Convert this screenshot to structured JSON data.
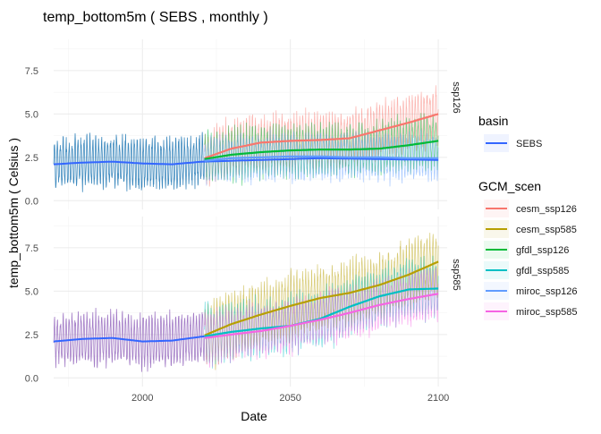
{
  "chart_data": {
    "type": "line",
    "title": "temp_bottom5m ( SEBS , monthly )",
    "xlabel": "Date",
    "ylabel": "temp_bottom5m ( Celsius )",
    "xlim": [
      1970,
      2103
    ],
    "ylim": [
      -0.5,
      9.3
    ],
    "x_ticks": [
      "2000",
      "2050",
      "2100"
    ],
    "x_tick_values": [
      2000,
      2050,
      2100
    ],
    "y_ticks": [
      "0.0",
      "2.5",
      "5.0",
      "7.5"
    ],
    "y_tick_values": [
      0,
      2.5,
      5,
      7.5
    ],
    "grid": true,
    "legend_position": "right",
    "legends": [
      {
        "title": "basin",
        "entries": [
          {
            "label": "SEBS",
            "color": "#3366ff"
          }
        ]
      },
      {
        "title": "GCM_scen",
        "entries": [
          {
            "label": "cesm_ssp126",
            "color": "#F8766D"
          },
          {
            "label": "cesm_ssp585",
            "color": "#B79F00"
          },
          {
            "label": "gfdl_ssp126",
            "color": "#00BA38"
          },
          {
            "label": "gfdl_ssp585",
            "color": "#00BFC4"
          },
          {
            "label": "miroc_ssp126",
            "color": "#619CFF"
          },
          {
            "label": "miroc_ssp585",
            "color": "#F564E3"
          }
        ]
      }
    ],
    "panels": [
      {
        "label": "ssp126",
        "historical": {
          "color": "#1f77b4",
          "x_range": [
            1970,
            2021
          ],
          "mean": [
            [
              1970,
              2.1
            ],
            [
              1980,
              2.25
            ],
            [
              1990,
              2.3
            ],
            [
              2000,
              2.1
            ],
            [
              2010,
              2.15
            ],
            [
              2021,
              2.4
            ]
          ],
          "amplitude": 1.6
        },
        "series": [
          {
            "name": "cesm_ssp126",
            "color": "#F8766D",
            "x": [
              2021,
              2030,
              2040,
              2050,
              2060,
              2070,
              2080,
              2090,
              2100
            ],
            "smooth": [
              2.45,
              3.0,
              3.35,
              3.45,
              3.5,
              3.6,
              4.05,
              4.5,
              5.0
            ],
            "amplitude": 1.7
          },
          {
            "name": "gfdl_ssp126",
            "color": "#00BA38",
            "x": [
              2021,
              2030,
              2040,
              2050,
              2060,
              2070,
              2080,
              2090,
              2100
            ],
            "smooth": [
              2.4,
              2.65,
              2.8,
              2.9,
              2.95,
              2.95,
              3.0,
              3.2,
              3.45
            ],
            "amplitude": 1.6
          },
          {
            "name": "miroc_ssp126",
            "color": "#619CFF",
            "x": [
              2021,
              2030,
              2040,
              2050,
              2060,
              2070,
              2080,
              2090,
              2100
            ],
            "smooth": [
              2.3,
              2.45,
              2.5,
              2.55,
              2.55,
              2.5,
              2.5,
              2.45,
              2.45
            ],
            "amplitude": 1.4
          }
        ],
        "basin_line": {
          "name": "SEBS",
          "color": "#3366ff",
          "x": [
            1970,
            1980,
            1990,
            2000,
            2010,
            2020,
            2040,
            2060,
            2080,
            2100
          ],
          "smooth": [
            2.1,
            2.2,
            2.25,
            2.15,
            2.1,
            2.25,
            2.35,
            2.45,
            2.4,
            2.35
          ]
        }
      },
      {
        "label": "ssp585",
        "historical": {
          "color": "#9467bd",
          "x_range": [
            1970,
            2021
          ],
          "mean": [
            [
              1970,
              2.1
            ],
            [
              1980,
              2.25
            ],
            [
              1990,
              2.3
            ],
            [
              2000,
              2.1
            ],
            [
              2010,
              2.15
            ],
            [
              2021,
              2.4
            ]
          ],
          "amplitude": 1.6
        },
        "series": [
          {
            "name": "cesm_ssp585",
            "color": "#B79F00",
            "x": [
              2021,
              2030,
              2040,
              2050,
              2060,
              2070,
              2080,
              2090,
              2100
            ],
            "smooth": [
              2.45,
              3.1,
              3.65,
              4.15,
              4.6,
              4.9,
              5.35,
              5.95,
              6.7
            ],
            "amplitude": 2.0
          },
          {
            "name": "gfdl_ssp585",
            "color": "#00BFC4",
            "x": [
              2021,
              2030,
              2040,
              2050,
              2060,
              2070,
              2080,
              2090,
              2100
            ],
            "smooth": [
              2.4,
              2.65,
              2.85,
              3.0,
              3.4,
              4.1,
              4.7,
              5.1,
              5.15
            ],
            "amplitude": 1.8
          },
          {
            "name": "miroc_ssp585",
            "color": "#F564E3",
            "x": [
              2021,
              2030,
              2040,
              2050,
              2060,
              2070,
              2080,
              2090,
              2100
            ],
            "smooth": [
              2.3,
              2.5,
              2.7,
              3.0,
              3.35,
              3.75,
              4.2,
              4.55,
              4.85
            ],
            "amplitude": 1.6
          }
        ]
      }
    ]
  }
}
